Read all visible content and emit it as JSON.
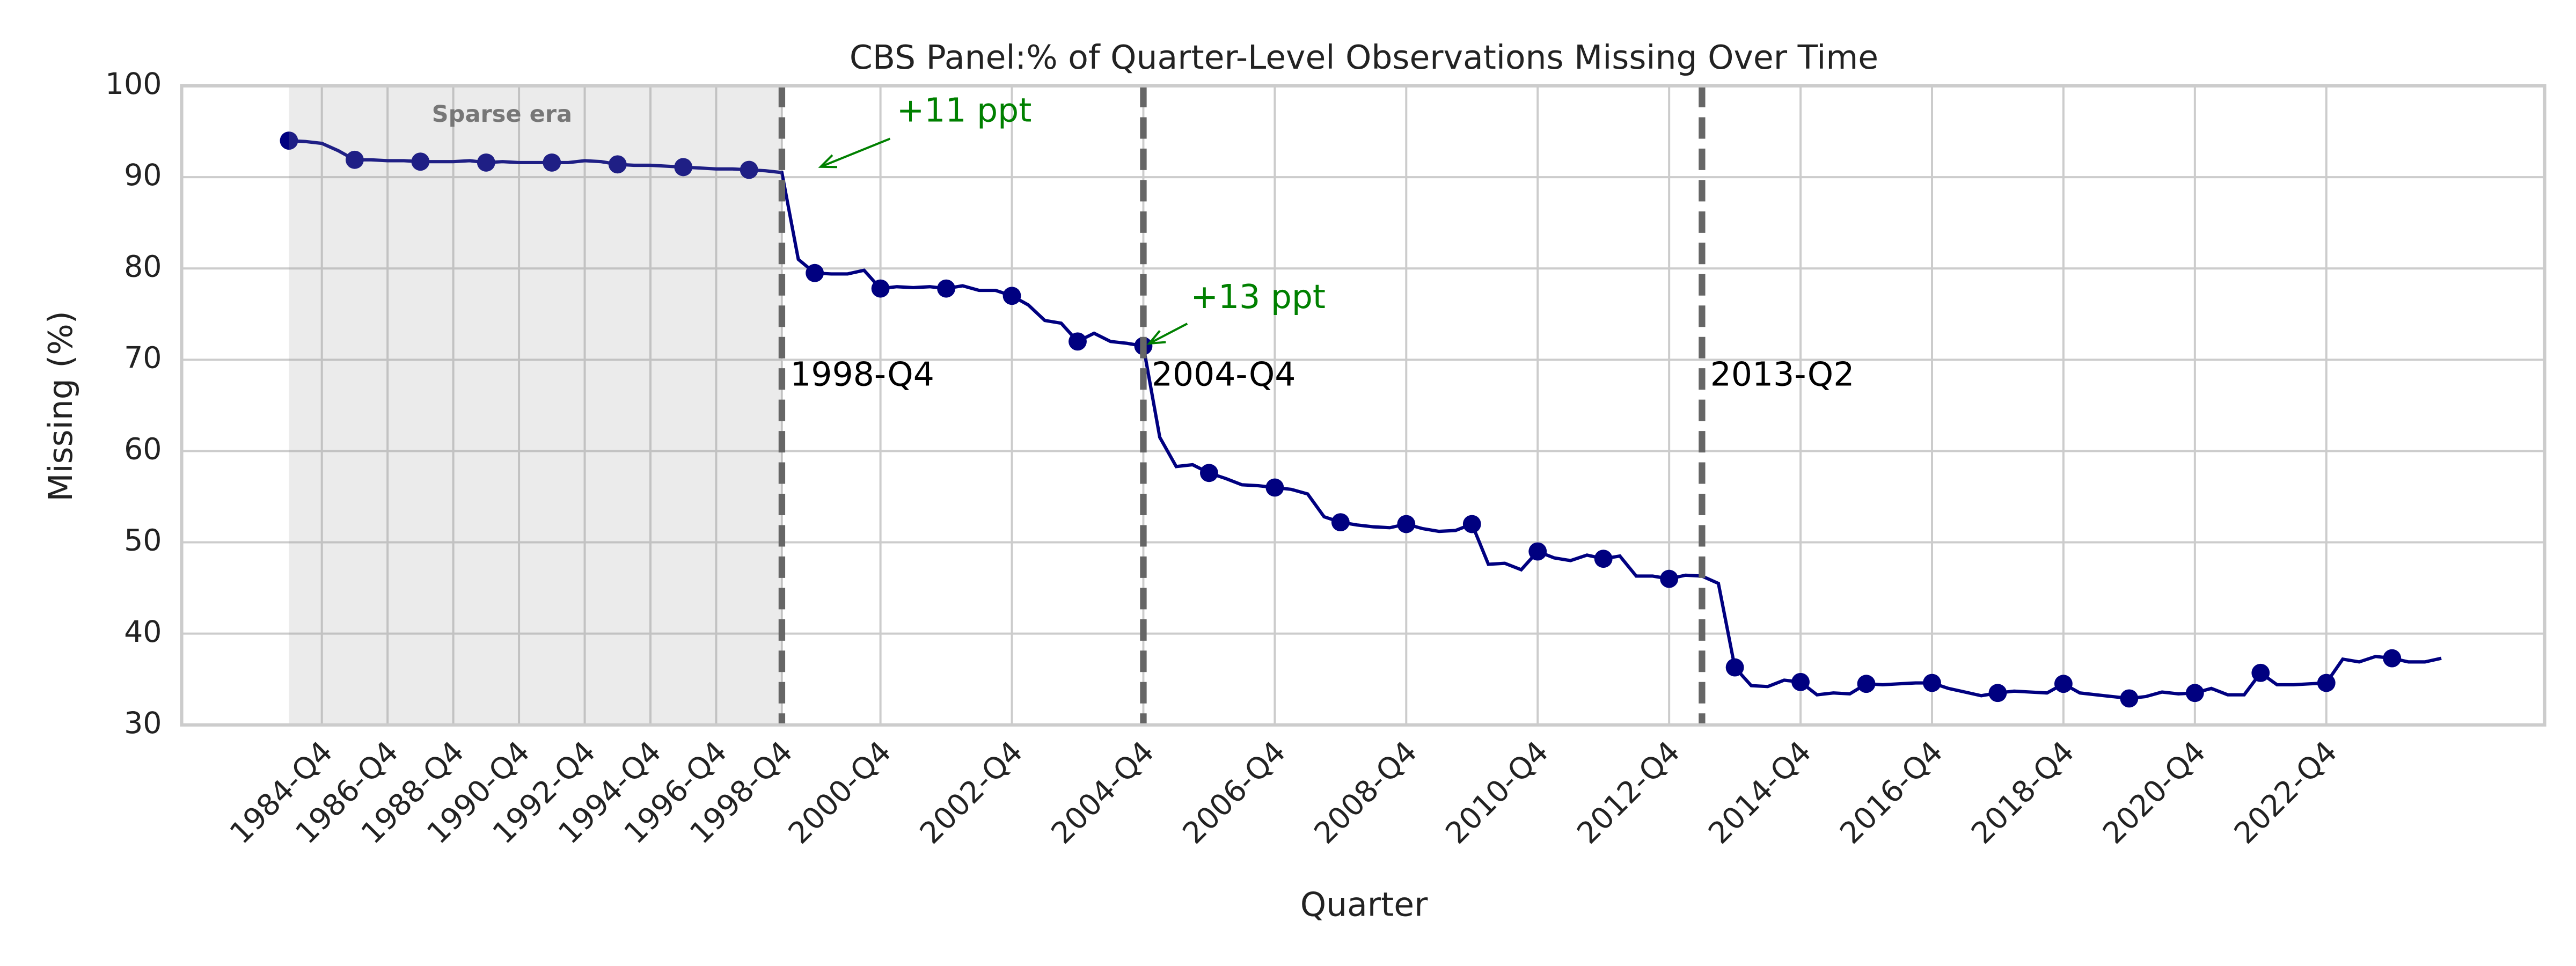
{
  "chart_data": {
    "type": "line",
    "title": "CBS Panel:% of Quarter-Level Observations Missing Over Time",
    "x_label": "Quarter",
    "y_label": "Missing (%)",
    "categories": [
      null,
      null,
      "1984-Q4",
      null,
      null,
      null,
      "1986-Q4",
      null,
      null,
      null,
      "1988-Q4",
      null,
      null,
      null,
      "1990-Q4",
      null,
      null,
      null,
      "1992-Q4",
      null,
      null,
      null,
      "1994-Q4",
      null,
      null,
      null,
      "1996-Q4",
      null,
      null,
      null,
      "1998-Q4",
      null,
      null,
      null,
      null,
      null,
      "2000-Q4",
      null,
      null,
      null,
      null,
      null,
      null,
      null,
      "2002-Q4",
      null,
      null,
      null,
      null,
      null,
      null,
      null,
      "2004-Q4",
      null,
      null,
      null,
      null,
      null,
      null,
      null,
      "2006-Q4",
      null,
      null,
      null,
      null,
      null,
      null,
      null,
      "2008-Q4",
      null,
      null,
      null,
      null,
      null,
      null,
      null,
      "2010-Q4",
      null,
      null,
      null,
      null,
      null,
      null,
      null,
      "2012-Q4",
      null,
      "2013-Q2",
      null,
      null,
      null,
      null,
      null,
      "2014-Q4",
      null,
      null,
      null,
      null,
      null,
      null,
      null,
      "2016-Q4",
      null,
      null,
      null,
      null,
      null,
      null,
      null,
      "2018-Q4",
      null,
      null,
      null,
      null,
      null,
      null,
      null,
      "2020-Q4",
      null,
      null,
      null,
      null,
      null,
      null,
      null,
      "2022-Q4",
      null,
      null,
      null,
      null,
      null,
      null,
      null
    ],
    "xticks": [
      "1984-Q4",
      "1986-Q4",
      "1988-Q4",
      "1990-Q4",
      "1992-Q4",
      "1994-Q4",
      "1996-Q4",
      "1998-Q4",
      "2000-Q4",
      "2002-Q4",
      "2004-Q4",
      "2006-Q4",
      "2008-Q4",
      "2010-Q4",
      "2012-Q4",
      "2014-Q4",
      "2016-Q4",
      "2018-Q4",
      "2020-Q4",
      "2022-Q4"
    ],
    "series": [
      {
        "name": "Missing (%)",
        "color": "#000080",
        "markevery": 4,
        "values": [
          94.0,
          93.9,
          93.7,
          92.9,
          91.9,
          91.9,
          91.8,
          91.8,
          91.7,
          91.7,
          91.7,
          91.8,
          91.6,
          91.7,
          91.6,
          91.6,
          91.6,
          91.6,
          91.8,
          91.7,
          91.4,
          91.3,
          91.3,
          91.2,
          91.1,
          91.0,
          90.9,
          90.9,
          90.8,
          90.7,
          90.5,
          81.0,
          79.5,
          79.4,
          79.4,
          79.8,
          77.8,
          78.0,
          77.9,
          78.0,
          77.8,
          78.1,
          77.6,
          77.6,
          77.0,
          76.0,
          74.3,
          74.0,
          72.0,
          72.9,
          72.0,
          71.8,
          71.5,
          61.5,
          58.3,
          58.5,
          57.6,
          57.0,
          56.3,
          56.2,
          56.0,
          55.8,
          55.3,
          52.8,
          52.2,
          51.9,
          51.7,
          51.6,
          52.0,
          51.5,
          51.2,
          51.3,
          52.0,
          47.6,
          47.7,
          47.0,
          49.0,
          48.3,
          48.0,
          48.6,
          48.2,
          48.5,
          46.3,
          46.3,
          46.0,
          46.4,
          46.3,
          45.5,
          36.3,
          34.3,
          34.2,
          34.9,
          34.7,
          33.3,
          33.5,
          33.4,
          34.5,
          34.4,
          34.5,
          34.6,
          34.6,
          34.0,
          33.6,
          33.2,
          33.5,
          33.7,
          33.6,
          33.5,
          34.5,
          33.5,
          33.3,
          33.1,
          32.9,
          33.1,
          33.6,
          33.4,
          33.5,
          34.0,
          33.3,
          33.3,
          35.7,
          34.4,
          34.4,
          34.5,
          34.6,
          37.2,
          36.9,
          37.5,
          37.3,
          36.9,
          36.9,
          37.3
        ]
      }
    ],
    "ylim": [
      30,
      100
    ],
    "yticks": [
      30,
      40,
      50,
      60,
      70,
      80,
      90,
      100
    ],
    "grid": true,
    "vlines": [
      "1998-Q4",
      "2004-Q4",
      "2013-Q2"
    ],
    "shaded_span_label": "Sparse era",
    "annotations": [
      "+11 ppt",
      "+13 ppt"
    ]
  }
}
